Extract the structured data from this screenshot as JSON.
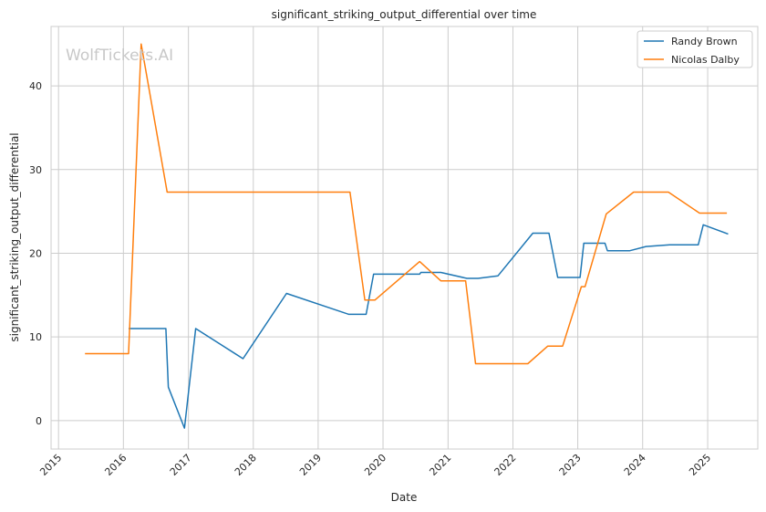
{
  "chart_data": {
    "type": "line",
    "title": "significant_striking_output_differential over time",
    "xlabel": "Date",
    "ylabel": "significant_striking_output_differential",
    "watermark": "WolfTickets.AI",
    "x_ticks": [
      "2015",
      "2016",
      "2017",
      "2018",
      "2019",
      "2020",
      "2021",
      "2022",
      "2023",
      "2024",
      "2025"
    ],
    "y_ticks": [
      0,
      10,
      20,
      30,
      40
    ],
    "xlim": [
      "2014-11-20",
      "2025-10-10"
    ],
    "ylim": [
      -3.4,
      47.1
    ],
    "grid": true,
    "legend_position": "top-right",
    "series": [
      {
        "name": "Randy Brown",
        "color": "#1f77b4",
        "points": [
          [
            "2016-01-30",
            11.0
          ],
          [
            "2016-08-27",
            11.0
          ],
          [
            "2016-09-10",
            4.0
          ],
          [
            "2016-12-10",
            -0.9
          ],
          [
            "2017-02-11",
            11.0
          ],
          [
            "2017-11-04",
            7.4
          ],
          [
            "2018-07-07",
            15.2
          ],
          [
            "2019-06-22",
            12.7
          ],
          [
            "2019-09-28",
            12.7
          ],
          [
            "2019-11-09",
            17.5
          ],
          [
            "2020-07-25",
            17.5
          ],
          [
            "2020-08-01",
            17.7
          ],
          [
            "2020-11-21",
            17.7
          ],
          [
            "2021-04-17",
            17.0
          ],
          [
            "2021-06-19",
            17.0
          ],
          [
            "2021-10-09",
            17.3
          ],
          [
            "2022-04-23",
            22.4
          ],
          [
            "2022-07-23",
            22.4
          ],
          [
            "2022-09-10",
            17.1
          ],
          [
            "2023-01-14",
            17.1
          ],
          [
            "2023-02-04",
            21.2
          ],
          [
            "2023-06-03",
            21.2
          ],
          [
            "2023-06-17",
            20.3
          ],
          [
            "2023-10-21",
            20.3
          ],
          [
            "2024-01-20",
            20.8
          ],
          [
            "2024-06-01",
            21.0
          ],
          [
            "2024-11-09",
            21.0
          ],
          [
            "2024-12-07",
            23.4
          ],
          [
            "2025-04-26",
            22.3
          ]
        ]
      },
      {
        "name": "Nicolas Dalby",
        "color": "#ff7f0e",
        "points": [
          [
            "2015-05-30",
            8.0
          ],
          [
            "2016-01-30",
            8.0
          ],
          [
            "2016-04-10",
            45.0
          ],
          [
            "2016-09-03",
            27.3
          ],
          [
            "2019-06-29",
            27.3
          ],
          [
            "2019-09-21",
            14.4
          ],
          [
            "2019-11-16",
            14.4
          ],
          [
            "2020-07-25",
            19.0
          ],
          [
            "2020-11-21",
            16.7
          ],
          [
            "2021-04-10",
            16.7
          ],
          [
            "2021-06-05",
            6.8
          ],
          [
            "2022-03-26",
            6.8
          ],
          [
            "2022-07-16",
            8.9
          ],
          [
            "2022-10-08",
            8.9
          ],
          [
            "2023-01-21",
            16.0
          ],
          [
            "2023-02-11",
            16.0
          ],
          [
            "2023-06-10",
            24.7
          ],
          [
            "2023-11-11",
            27.3
          ],
          [
            "2024-05-25",
            27.3
          ],
          [
            "2024-11-16",
            24.8
          ],
          [
            "2025-04-19",
            24.8
          ]
        ]
      }
    ]
  }
}
